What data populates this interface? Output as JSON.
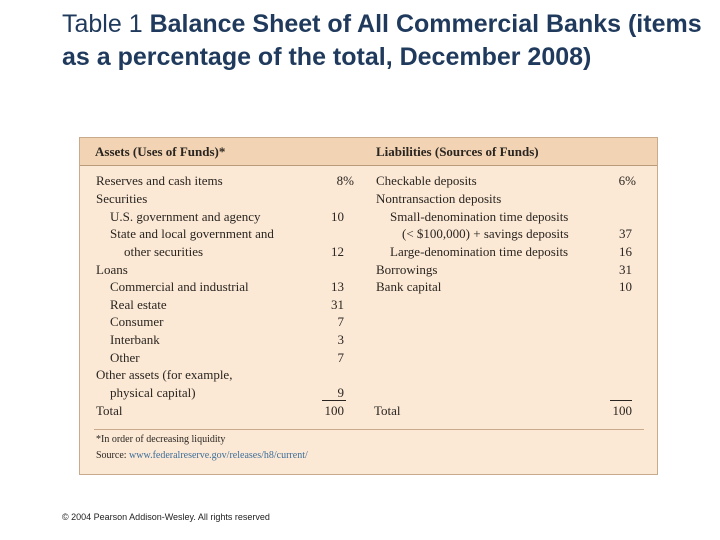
{
  "title": {
    "label": "Table 1",
    "heading": "Balance Sheet of All Commercial Banks (items as a percentage of the total, December 2008)"
  },
  "table": {
    "assets_header": "Assets (Uses of Funds)*",
    "liabilities_header": "Liabilities (Sources of Funds)",
    "assets": [
      {
        "label": "Reserves and cash items",
        "value": "8%"
      },
      {
        "label": "Securities",
        "value": ""
      },
      {
        "label": "U.S. government and agency",
        "value": "10"
      },
      {
        "label": "State and local government and",
        "value": ""
      },
      {
        "label": "other securities",
        "value": "12"
      },
      {
        "label": "Loans",
        "value": ""
      },
      {
        "label": "Commercial and industrial",
        "value": "13"
      },
      {
        "label": "Real estate",
        "value": "31"
      },
      {
        "label": "Consumer",
        "value": "7"
      },
      {
        "label": "Interbank",
        "value": "3"
      },
      {
        "label": "Other",
        "value": "7"
      },
      {
        "label": "Other assets (for example,",
        "value": ""
      },
      {
        "label": "physical capital)",
        "value": "9"
      }
    ],
    "assets_total": {
      "label": "Total",
      "value": "100"
    },
    "liabilities": [
      {
        "label": "Checkable deposits",
        "value": "6%"
      },
      {
        "label": "Nontransaction deposits",
        "value": ""
      },
      {
        "label": "Small-denomination time deposits",
        "value": ""
      },
      {
        "label": "(< $100,000) + savings deposits",
        "value": "37"
      },
      {
        "label": "Large-denomination time deposits",
        "value": "16"
      },
      {
        "label": "Borrowings",
        "value": "31"
      },
      {
        "label": "Bank capital",
        "value": "10"
      }
    ],
    "liabilities_total": {
      "label": "Total",
      "value": "100"
    },
    "footnote": "*In order of decreasing liquidity",
    "source_label": "Source:",
    "source_url": "www.federalreserve.gov/releases/h8/current/"
  },
  "copyright": "© 2004 Pearson Addison-Wesley. All rights reserved"
}
